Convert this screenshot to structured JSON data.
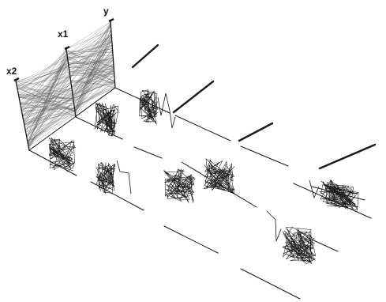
{
  "axes": {
    "labels": [
      "x2",
      "x1",
      "y"
    ]
  },
  "colors": {
    "stroke": "#1a1a1a",
    "web_line": "#555555",
    "background": "#ffffff"
  }
}
